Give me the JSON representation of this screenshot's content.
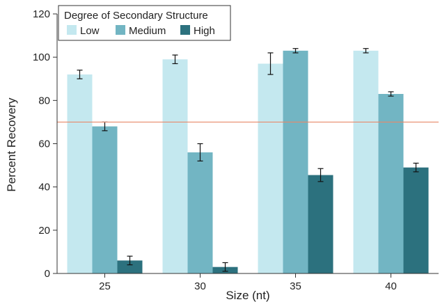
{
  "chart_data": {
    "type": "bar",
    "xlabel": "Size (nt)",
    "ylabel": "Percent Recovery",
    "categories": [
      "25",
      "30",
      "35",
      "40"
    ],
    "ylim": [
      0,
      120
    ],
    "yticks": [
      0,
      20,
      40,
      60,
      80,
      100,
      120
    ],
    "grid": false,
    "reference_line": {
      "y": 70,
      "color": "#e8896a"
    },
    "legend": {
      "title": "Degree of Secondary Structure",
      "placement": "top-left"
    },
    "series": [
      {
        "name": "Low",
        "color": "#c4e8ef",
        "values": [
          92,
          99,
          97,
          103
        ],
        "errors": [
          2,
          2,
          5,
          1
        ]
      },
      {
        "name": "Medium",
        "color": "#72b5c3",
        "values": [
          68,
          56,
          103,
          83
        ],
        "errors": [
          2,
          4,
          1,
          1
        ]
      },
      {
        "name": "High",
        "color": "#2c717e",
        "values": [
          6,
          3,
          45.5,
          49
        ],
        "errors": [
          2,
          2,
          3,
          2
        ]
      }
    ]
  }
}
